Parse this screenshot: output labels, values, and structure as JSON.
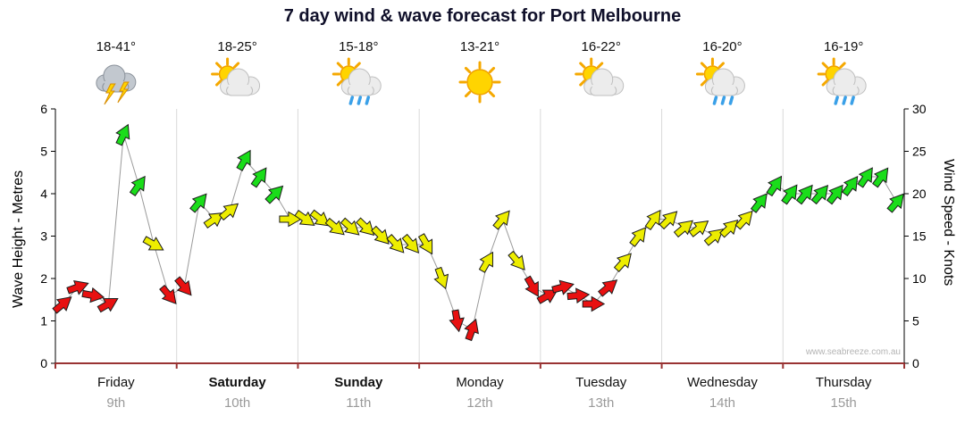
{
  "chart_data": {
    "type": "line",
    "title": "7 day wind & wave forecast for Port Melbourne",
    "left_axis": {
      "label": "Wave Height - Metres",
      "min": 0,
      "max": 6,
      "ticks": [
        0,
        1,
        2,
        3,
        4,
        5,
        6
      ]
    },
    "right_axis": {
      "label": "Wind Speed - Knots",
      "min": 0,
      "max": 30,
      "ticks": [
        0,
        5,
        10,
        15,
        20,
        25,
        30
      ]
    },
    "grid": "vertical-day-separators",
    "legend_position": "none",
    "watermark": "www.seabreeze.com.au",
    "days": [
      {
        "name": "Friday",
        "date": "9th",
        "temp": "18-41°",
        "icon": "storm-cloud",
        "bold": false
      },
      {
        "name": "Saturday",
        "date": "10th",
        "temp": "18-25°",
        "icon": "sun-cloud",
        "bold": true
      },
      {
        "name": "Sunday",
        "date": "11th",
        "temp": "15-18°",
        "icon": "sun-cloud-rain",
        "bold": true
      },
      {
        "name": "Monday",
        "date": "12th",
        "temp": "13-21°",
        "icon": "sun",
        "bold": false
      },
      {
        "name": "Tuesday",
        "date": "13th",
        "temp": "16-22°",
        "icon": "sun-cloud",
        "bold": false
      },
      {
        "name": "Wednesday",
        "date": "14th",
        "temp": "16-20°",
        "icon": "sun-cloud-rain",
        "bold": false
      },
      {
        "name": "Thursday",
        "date": "15th",
        "temp": "16-19°",
        "icon": "sun-cloud-rain",
        "bold": false
      }
    ],
    "thresholds": {
      "yellow_min": 10,
      "green_min": 19
    },
    "colors": {
      "red": "#E81111",
      "yellow": "#EDED00",
      "green": "#1ADD1A",
      "wave_line": "#9a9a9a",
      "axis_bottom": "#993333",
      "grid": "#d9d9d9"
    },
    "wind_points": [
      [
        0.0625,
        7,
        50
      ],
      [
        0.1875,
        9,
        70
      ],
      [
        0.3125,
        8,
        100
      ],
      [
        0.4375,
        7,
        60
      ],
      [
        0.5625,
        27,
        25
      ],
      [
        0.6875,
        21,
        35
      ],
      [
        0.8125,
        14,
        120
      ],
      [
        0.9375,
        8,
        140
      ],
      [
        1.0625,
        9,
        140
      ],
      [
        1.1875,
        19,
        40
      ],
      [
        1.3125,
        17,
        55
      ],
      [
        1.4375,
        18,
        50
      ],
      [
        1.5625,
        24,
        30
      ],
      [
        1.6875,
        22,
        35
      ],
      [
        1.8125,
        20,
        45
      ],
      [
        1.9375,
        17,
        90
      ],
      [
        2.0625,
        17,
        125
      ],
      [
        2.1875,
        17,
        128
      ],
      [
        2.3125,
        16,
        130
      ],
      [
        2.4375,
        16,
        132
      ],
      [
        2.5625,
        16,
        134
      ],
      [
        2.6875,
        15,
        136
      ],
      [
        2.8125,
        14,
        138
      ],
      [
        2.9375,
        14,
        140
      ],
      [
        3.0625,
        14,
        150
      ],
      [
        3.1875,
        10,
        160
      ],
      [
        3.3125,
        5,
        170
      ],
      [
        3.4375,
        4,
        20
      ],
      [
        3.5625,
        12,
        30
      ],
      [
        3.6875,
        17,
        40
      ],
      [
        3.8125,
        12,
        140
      ],
      [
        3.9375,
        9,
        150
      ],
      [
        4.0625,
        8,
        60
      ],
      [
        4.1875,
        9,
        75
      ],
      [
        4.3125,
        8,
        85
      ],
      [
        4.4375,
        7,
        90
      ],
      [
        4.5625,
        9,
        50
      ],
      [
        4.6875,
        12,
        42
      ],
      [
        4.8125,
        15,
        38
      ],
      [
        4.9375,
        17,
        35
      ],
      [
        5.0625,
        17,
        45
      ],
      [
        5.1875,
        16,
        50
      ],
      [
        5.3125,
        16,
        52
      ],
      [
        5.4375,
        15,
        50
      ],
      [
        5.5625,
        16,
        46
      ],
      [
        5.6875,
        17,
        42
      ],
      [
        5.8125,
        19,
        38
      ],
      [
        5.9375,
        21,
        34
      ],
      [
        6.0625,
        20,
        36
      ],
      [
        6.1875,
        20,
        38
      ],
      [
        6.3125,
        20,
        40
      ],
      [
        6.4375,
        20,
        38
      ],
      [
        6.5625,
        21,
        36
      ],
      [
        6.6875,
        22,
        34
      ],
      [
        6.8125,
        22,
        36
      ],
      [
        6.9375,
        19,
        40
      ]
    ]
  }
}
